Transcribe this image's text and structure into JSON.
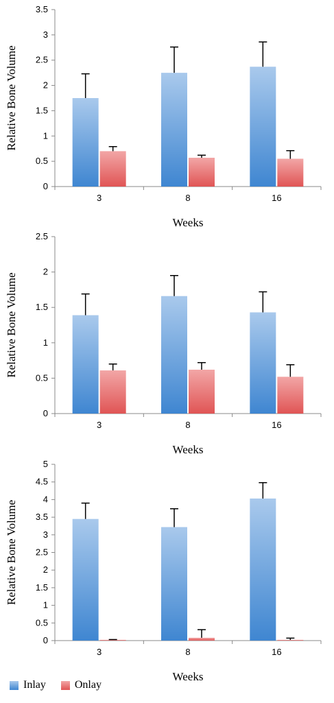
{
  "colors": {
    "inlay": "#5b9bd5",
    "onlay": "#e06060"
  },
  "legend": [
    {
      "name": "Inlay",
      "color": "#5b9bd5"
    },
    {
      "name": "Onlay",
      "color": "#e06060"
    }
  ],
  "chart_data": [
    {
      "type": "bar",
      "categories": [
        "3",
        "8",
        "16"
      ],
      "xlabel": "Weeks",
      "ylabel": "Relative Bone Volume",
      "ylim": [
        0,
        3.5
      ],
      "yticks": [
        "0",
        "0.5",
        "1",
        "1.5",
        "2",
        "2.5",
        "3",
        "3.5"
      ],
      "series": [
        {
          "name": "Inlay",
          "values": [
            1.75,
            2.25,
            2.37
          ],
          "errors": [
            0.48,
            0.51,
            0.49
          ]
        },
        {
          "name": "Onlay",
          "values": [
            0.7,
            0.57,
            0.55
          ],
          "errors": [
            0.09,
            0.05,
            0.16
          ]
        }
      ]
    },
    {
      "type": "bar",
      "categories": [
        "3",
        "8",
        "16"
      ],
      "xlabel": "Weeks",
      "ylabel": "Relative Bone Volume",
      "ylim": [
        0,
        2.5
      ],
      "yticks": [
        "0",
        "0.5",
        "1",
        "1.5",
        "2",
        "2.5"
      ],
      "series": [
        {
          "name": "Inlay",
          "values": [
            1.39,
            1.66,
            1.43
          ],
          "errors": [
            0.3,
            0.29,
            0.29
          ]
        },
        {
          "name": "Onlay",
          "values": [
            0.61,
            0.62,
            0.52
          ],
          "errors": [
            0.09,
            0.1,
            0.17
          ]
        }
      ]
    },
    {
      "type": "bar",
      "categories": [
        "3",
        "8",
        "16"
      ],
      "xlabel": "Weeks",
      "ylabel": "Relative Bone Volume",
      "ylim": [
        0,
        5
      ],
      "yticks": [
        "0",
        "0.5",
        "1",
        "1.5",
        "2",
        "2.5",
        "3",
        "3.5",
        "4",
        "4.5",
        "5"
      ],
      "series": [
        {
          "name": "Inlay",
          "values": [
            3.45,
            3.22,
            4.03
          ],
          "errors": [
            0.45,
            0.52,
            0.45
          ]
        },
        {
          "name": "Onlay",
          "values": [
            0.02,
            0.08,
            0.02
          ],
          "errors": [
            0.01,
            0.23,
            0.05
          ]
        }
      ]
    }
  ]
}
